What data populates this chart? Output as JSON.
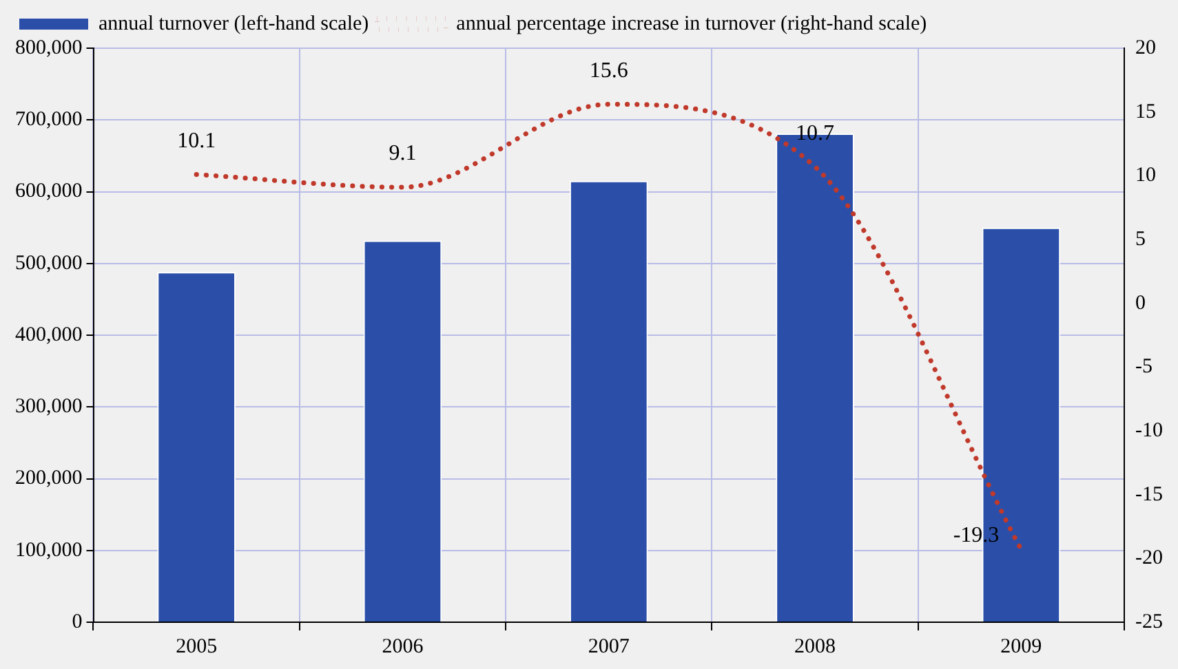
{
  "chart_data": {
    "type": "bar",
    "categories": [
      "2005",
      "2006",
      "2007",
      "2008",
      "2009"
    ],
    "series": [
      {
        "name": "annual turnover (left-hand scale)",
        "color": "#2b4fa8",
        "values": [
          488000,
          532000,
          615000,
          681000,
          550000
        ]
      },
      {
        "name": "annual percentage increase in turnover (right-hand scale)",
        "type": "line",
        "axis": "y2",
        "color": "#c0392b",
        "line_style": "dotted",
        "marker": "none",
        "values": [
          10.1,
          9.1,
          15.6,
          10.7,
          -19.3
        ],
        "value_labels": [
          "10.1",
          "9.1",
          "15.6",
          "10.7",
          "-19.3"
        ]
      }
    ],
    "ylim": [
      0,
      800000
    ],
    "yticks": [
      {
        "value": 0,
        "label": "0"
      },
      {
        "value": 100000,
        "label": "100,000"
      },
      {
        "value": 200000,
        "label": "200,000"
      },
      {
        "value": 300000,
        "label": "300,000"
      },
      {
        "value": 400000,
        "label": "400,000"
      },
      {
        "value": 500000,
        "label": "500,000"
      },
      {
        "value": 600000,
        "label": "600,000"
      },
      {
        "value": 700000,
        "label": "700,000"
      },
      {
        "value": 800000,
        "label": "800,000"
      }
    ],
    "y2lim": [
      -25,
      20
    ],
    "y2ticks": [
      -25,
      -20,
      -15,
      -10,
      -5,
      0,
      5,
      10,
      15,
      20
    ],
    "grid": true,
    "legend": "top left"
  }
}
